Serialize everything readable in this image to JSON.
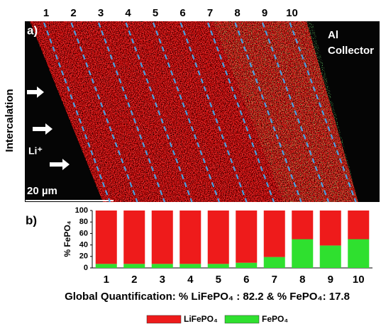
{
  "panel_a": {
    "label": "a)",
    "zone_labels": [
      "1",
      "2",
      "3",
      "4",
      "5",
      "6",
      "7",
      "8",
      "9",
      "10"
    ],
    "collector": [
      "Al",
      "Collector"
    ],
    "direction": "Intercalation",
    "ion": "Li⁺",
    "scale_bar": "20 µm"
  },
  "chart_data": {
    "type": "bar",
    "stacked": true,
    "panel_label": "b)",
    "y_label": "% FePO₄",
    "categories": [
      "1",
      "2",
      "3",
      "4",
      "5",
      "6",
      "7",
      "8",
      "9",
      "10"
    ],
    "series": [
      {
        "name": "LiFePO₄",
        "color": "#ee1b1b",
        "values": [
          93,
          93,
          93,
          93,
          93,
          91,
          81,
          50,
          61,
          50
        ]
      },
      {
        "name": "FePO₄",
        "color": "#2fe02f",
        "values": [
          7,
          7,
          7,
          7,
          7,
          9,
          19,
          50,
          39,
          50
        ]
      }
    ],
    "ylim": [
      0,
      100
    ],
    "yticks": [
      0,
      20,
      40,
      60,
      80,
      100
    ],
    "grid": false,
    "annotation": "Global Quantification: % LiFePO₄ : 82.2 & % FePO₄: 17.8"
  }
}
